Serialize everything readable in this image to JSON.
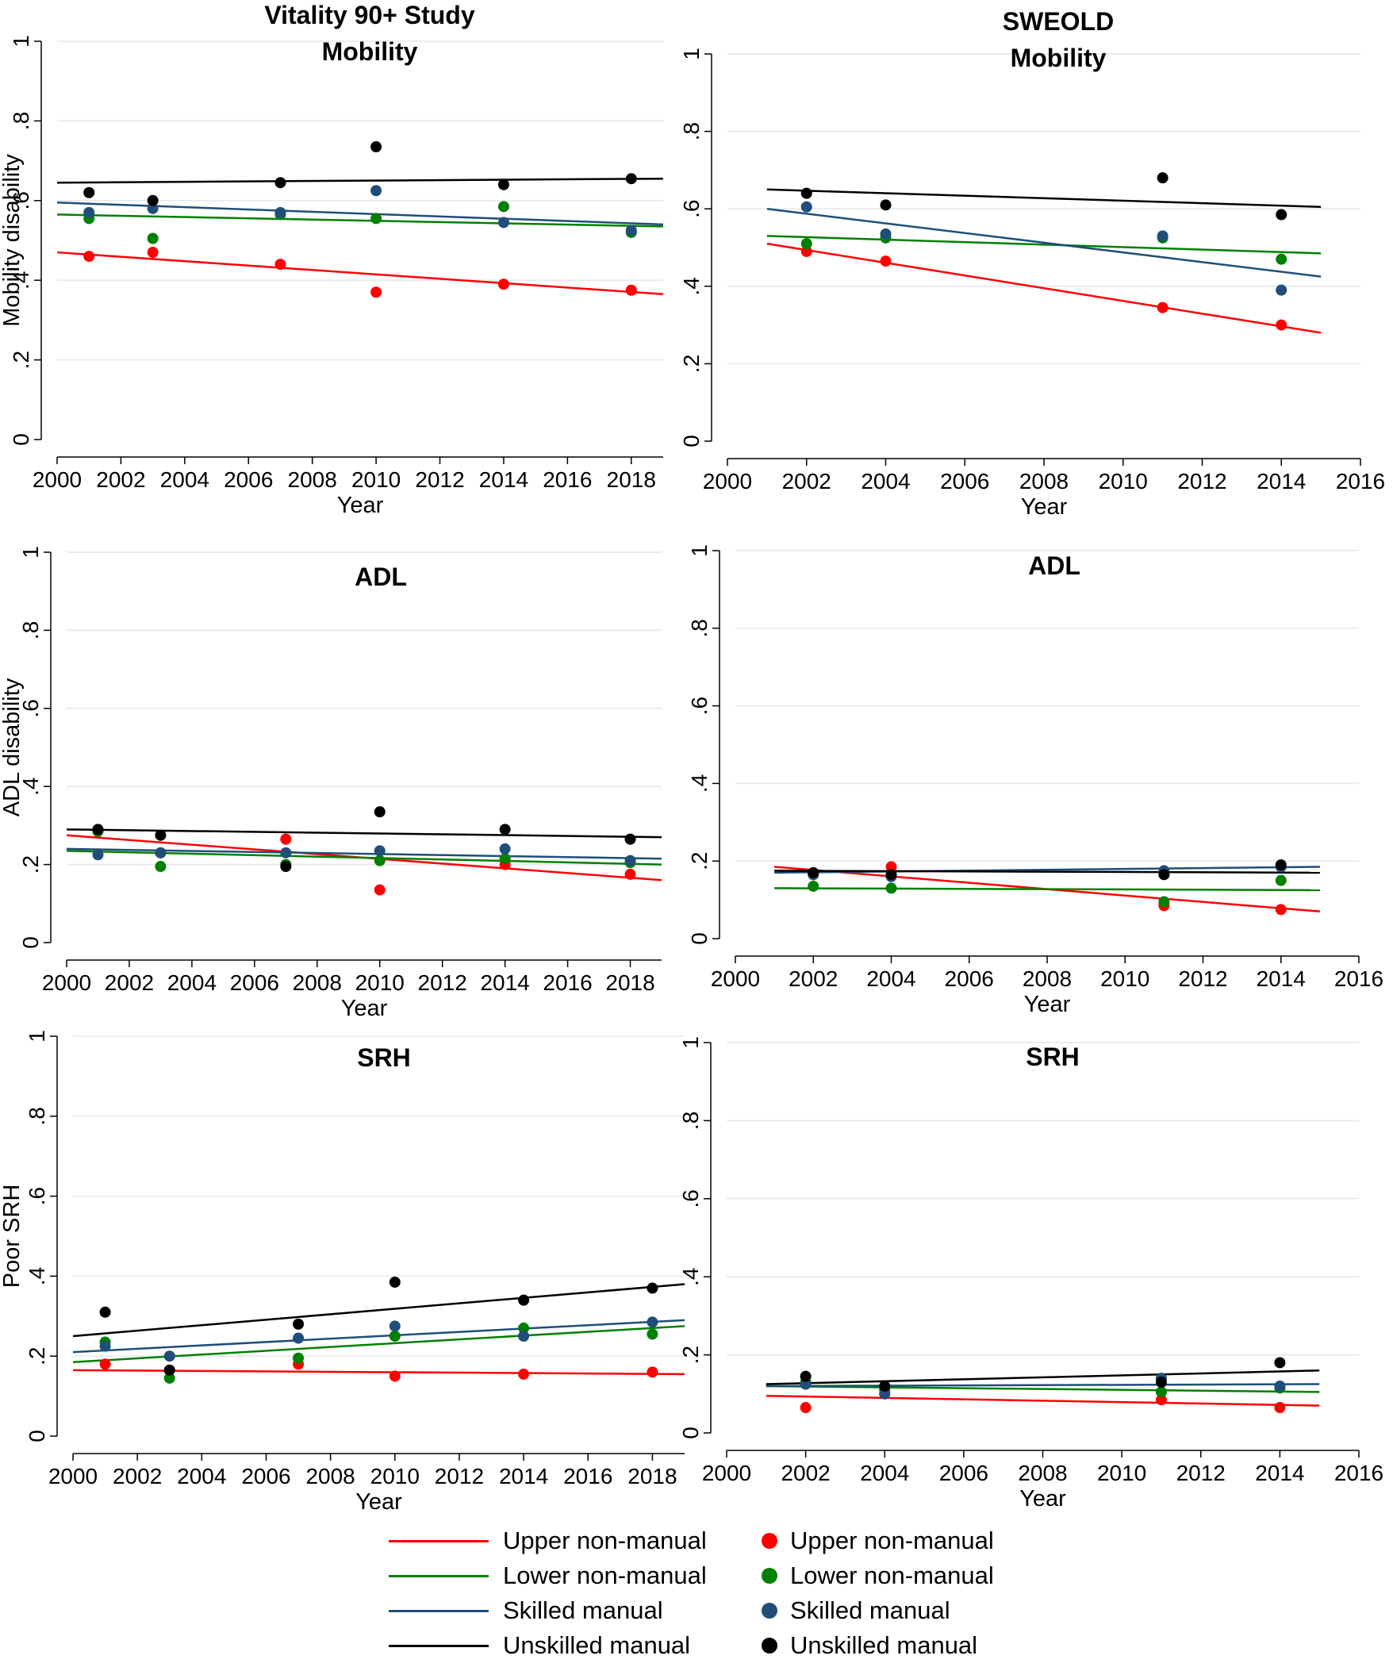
{
  "figure": {
    "panels_titles": [
      "Vitality 90+ Study / Mobility",
      "SWEOLD / Mobility",
      "ADL",
      "ADL",
      "SRH",
      "SRH"
    ]
  },
  "chart_data": [
    {
      "type": "scatter",
      "title_lines": [
        "Vitality 90+ Study",
        "Mobility"
      ],
      "xlabel": "Year",
      "ylabel": "Mobility disability",
      "xlim": [
        2000,
        2019
      ],
      "xticks": [
        2000,
        2002,
        2004,
        2006,
        2008,
        2010,
        2012,
        2014,
        2016,
        2018
      ],
      "ylim": [
        0,
        1
      ],
      "yticks": [
        0,
        0.2,
        0.4,
        0.6,
        0.8,
        1
      ],
      "ytick_labels": [
        "0",
        ".2",
        ".4",
        ".6",
        ".8",
        "1"
      ],
      "x": [
        2001,
        2003,
        2007,
        2010,
        2014,
        2018
      ],
      "series": [
        {
          "name": "Upper non-manual",
          "points": [
            [
              2001,
              0.46
            ],
            [
              2003,
              0.47
            ],
            [
              2007,
              0.44
            ],
            [
              2010,
              0.37
            ],
            [
              2014,
              0.39
            ],
            [
              2018,
              0.375
            ]
          ],
          "fit": [
            [
              2000,
              0.47
            ],
            [
              2019,
              0.365
            ]
          ]
        },
        {
          "name": "Lower non-manual",
          "points": [
            [
              2001,
              0.555
            ],
            [
              2003,
              0.505
            ],
            [
              2007,
              0.565
            ],
            [
              2010,
              0.555
            ],
            [
              2014,
              0.585
            ],
            [
              2018,
              0.52
            ]
          ],
          "fit": [
            [
              2000,
              0.565
            ],
            [
              2019,
              0.535
            ]
          ]
        },
        {
          "name": "Skilled manual",
          "points": [
            [
              2001,
              0.57
            ],
            [
              2003,
              0.58
            ],
            [
              2007,
              0.57
            ],
            [
              2010,
              0.625
            ],
            [
              2014,
              0.545
            ],
            [
              2018,
              0.525
            ]
          ],
          "fit": [
            [
              2000,
              0.595
            ],
            [
              2019,
              0.54
            ]
          ]
        },
        {
          "name": "Unskilled manual",
          "points": [
            [
              2001,
              0.62
            ],
            [
              2003,
              0.6
            ],
            [
              2007,
              0.645
            ],
            [
              2010,
              0.735
            ],
            [
              2014,
              0.64
            ],
            [
              2018,
              0.655
            ]
          ],
          "fit": [
            [
              2000,
              0.645
            ],
            [
              2019,
              0.655
            ]
          ]
        }
      ]
    },
    {
      "type": "scatter",
      "title_lines": [
        "SWEOLD",
        "Mobility"
      ],
      "xlabel": "Year",
      "ylabel": "",
      "xlim": [
        2000,
        2016
      ],
      "xticks": [
        2000,
        2002,
        2004,
        2006,
        2008,
        2010,
        2012,
        2014,
        2016
      ],
      "ylim": [
        0,
        1
      ],
      "yticks": [
        0,
        0.2,
        0.4,
        0.6,
        0.8,
        1
      ],
      "ytick_labels": [
        "0",
        ".2",
        ".4",
        ".6",
        ".8",
        "1"
      ],
      "x": [
        2002,
        2004,
        2011,
        2014
      ],
      "series": [
        {
          "name": "Upper non-manual",
          "points": [
            [
              2002,
              0.49
            ],
            [
              2004,
              0.465
            ],
            [
              2011,
              0.345
            ],
            [
              2014,
              0.3
            ]
          ],
          "fit": [
            [
              2001,
              0.51
            ],
            [
              2015,
              0.28
            ]
          ]
        },
        {
          "name": "Lower non-manual",
          "points": [
            [
              2002,
              0.51
            ],
            [
              2004,
              0.525
            ],
            [
              2011,
              0.525
            ],
            [
              2014,
              0.47
            ]
          ],
          "fit": [
            [
              2001,
              0.53
            ],
            [
              2015,
              0.485
            ]
          ]
        },
        {
          "name": "Skilled manual",
          "points": [
            [
              2002,
              0.605
            ],
            [
              2004,
              0.535
            ],
            [
              2011,
              0.53
            ],
            [
              2014,
              0.39
            ]
          ],
          "fit": [
            [
              2001,
              0.6
            ],
            [
              2015,
              0.425
            ]
          ]
        },
        {
          "name": "Unskilled manual",
          "points": [
            [
              2002,
              0.64
            ],
            [
              2004,
              0.61
            ],
            [
              2011,
              0.68
            ],
            [
              2014,
              0.585
            ]
          ],
          "fit": [
            [
              2001,
              0.65
            ],
            [
              2015,
              0.605
            ]
          ]
        }
      ]
    },
    {
      "type": "scatter",
      "title_lines": [
        "ADL"
      ],
      "xlabel": "Year",
      "ylabel": "ADL disability",
      "xlim": [
        2000,
        2019
      ],
      "xticks": [
        2000,
        2002,
        2004,
        2006,
        2008,
        2010,
        2012,
        2014,
        2016,
        2018
      ],
      "ylim": [
        0,
        1
      ],
      "yticks": [
        0,
        0.2,
        0.4,
        0.6,
        0.8,
        1
      ],
      "ytick_labels": [
        "0",
        ".2",
        ".4",
        ".6",
        ".8",
        "1"
      ],
      "x": [
        2001,
        2003,
        2007,
        2010,
        2014,
        2018
      ],
      "series": [
        {
          "name": "Upper non-manual",
          "points": [
            [
              2001,
              0.285
            ],
            [
              2003,
              0.23
            ],
            [
              2007,
              0.265
            ],
            [
              2010,
              0.135
            ],
            [
              2014,
              0.2
            ],
            [
              2018,
              0.175
            ]
          ],
          "fit": [
            [
              2000,
              0.275
            ],
            [
              2019,
              0.16
            ]
          ]
        },
        {
          "name": "Lower non-manual",
          "points": [
            [
              2001,
              0.285
            ],
            [
              2003,
              0.195
            ],
            [
              2007,
              0.2
            ],
            [
              2010,
              0.21
            ],
            [
              2014,
              0.215
            ],
            [
              2018,
              0.205
            ]
          ],
          "fit": [
            [
              2000,
              0.235
            ],
            [
              2019,
              0.2
            ]
          ]
        },
        {
          "name": "Skilled manual",
          "points": [
            [
              2001,
              0.225
            ],
            [
              2003,
              0.23
            ],
            [
              2007,
              0.23
            ],
            [
              2010,
              0.235
            ],
            [
              2014,
              0.24
            ],
            [
              2018,
              0.21
            ]
          ],
          "fit": [
            [
              2000,
              0.24
            ],
            [
              2019,
              0.215
            ]
          ]
        },
        {
          "name": "Unskilled manual",
          "points": [
            [
              2001,
              0.29
            ],
            [
              2003,
              0.275
            ],
            [
              2007,
              0.195
            ],
            [
              2010,
              0.335
            ],
            [
              2014,
              0.29
            ],
            [
              2018,
              0.265
            ]
          ],
          "fit": [
            [
              2000,
              0.29
            ],
            [
              2019,
              0.27
            ]
          ]
        }
      ]
    },
    {
      "type": "scatter",
      "title_lines": [
        "ADL"
      ],
      "xlabel": "Year",
      "ylabel": "",
      "xlim": [
        2000,
        2016
      ],
      "xticks": [
        2000,
        2002,
        2004,
        2006,
        2008,
        2010,
        2012,
        2014,
        2016
      ],
      "ylim": [
        0,
        1
      ],
      "yticks": [
        0,
        0.2,
        0.4,
        0.6,
        0.8,
        1
      ],
      "ytick_labels": [
        "0",
        ".2",
        ".4",
        ".6",
        ".8",
        "1"
      ],
      "x": [
        2002,
        2004,
        2011,
        2014
      ],
      "series": [
        {
          "name": "Upper non-manual",
          "points": [
            [
              2002,
              0.165
            ],
            [
              2004,
              0.185
            ],
            [
              2011,
              0.085
            ],
            [
              2014,
              0.075
            ]
          ],
          "fit": [
            [
              2001,
              0.185
            ],
            [
              2015,
              0.07
            ]
          ]
        },
        {
          "name": "Lower non-manual",
          "points": [
            [
              2002,
              0.135
            ],
            [
              2004,
              0.13
            ],
            [
              2011,
              0.095
            ],
            [
              2014,
              0.15
            ]
          ],
          "fit": [
            [
              2001,
              0.13
            ],
            [
              2015,
              0.125
            ]
          ]
        },
        {
          "name": "Skilled manual",
          "points": [
            [
              2002,
              0.165
            ],
            [
              2004,
              0.16
            ],
            [
              2011,
              0.175
            ],
            [
              2014,
              0.185
            ]
          ],
          "fit": [
            [
              2001,
              0.17
            ],
            [
              2015,
              0.185
            ]
          ]
        },
        {
          "name": "Unskilled manual",
          "points": [
            [
              2002,
              0.17
            ],
            [
              2004,
              0.165
            ],
            [
              2011,
              0.165
            ],
            [
              2014,
              0.19
            ]
          ],
          "fit": [
            [
              2001,
              0.175
            ],
            [
              2015,
              0.17
            ]
          ]
        }
      ]
    },
    {
      "type": "scatter",
      "title_lines": [
        "SRH"
      ],
      "xlabel": "Year",
      "ylabel": "Poor SRH",
      "xlim": [
        2000,
        2019
      ],
      "xticks": [
        2000,
        2002,
        2004,
        2006,
        2008,
        2010,
        2012,
        2014,
        2016,
        2018
      ],
      "ylim": [
        0,
        1
      ],
      "yticks": [
        0,
        0.2,
        0.4,
        0.6,
        0.8,
        1
      ],
      "ytick_labels": [
        "0",
        ".2",
        ".4",
        ".6",
        ".8",
        "1"
      ],
      "x": [
        2001,
        2003,
        2007,
        2010,
        2014,
        2018
      ],
      "series": [
        {
          "name": "Upper non-manual",
          "points": [
            [
              2001,
              0.18
            ],
            [
              2003,
              0.165
            ],
            [
              2007,
              0.18
            ],
            [
              2010,
              0.15
            ],
            [
              2014,
              0.155
            ],
            [
              2018,
              0.16
            ]
          ],
          "fit": [
            [
              2000,
              0.165
            ],
            [
              2019,
              0.155
            ]
          ]
        },
        {
          "name": "Lower non-manual",
          "points": [
            [
              2001,
              0.235
            ],
            [
              2003,
              0.145
            ],
            [
              2007,
              0.195
            ],
            [
              2010,
              0.25
            ],
            [
              2014,
              0.27
            ],
            [
              2018,
              0.255
            ]
          ],
          "fit": [
            [
              2000,
              0.185
            ],
            [
              2019,
              0.275
            ]
          ]
        },
        {
          "name": "Skilled manual",
          "points": [
            [
              2001,
              0.225
            ],
            [
              2003,
              0.2
            ],
            [
              2007,
              0.245
            ],
            [
              2010,
              0.275
            ],
            [
              2014,
              0.25
            ],
            [
              2018,
              0.285
            ]
          ],
          "fit": [
            [
              2000,
              0.21
            ],
            [
              2019,
              0.29
            ]
          ]
        },
        {
          "name": "Unskilled manual",
          "points": [
            [
              2001,
              0.31
            ],
            [
              2003,
              0.165
            ],
            [
              2007,
              0.28
            ],
            [
              2010,
              0.385
            ],
            [
              2014,
              0.34
            ],
            [
              2018,
              0.37
            ]
          ],
          "fit": [
            [
              2000,
              0.25
            ],
            [
              2019,
              0.38
            ]
          ]
        }
      ]
    },
    {
      "type": "scatter",
      "title_lines": [
        "SRH"
      ],
      "xlabel": "Year",
      "ylabel": "",
      "xlim": [
        2000,
        2016
      ],
      "xticks": [
        2000,
        2002,
        2004,
        2006,
        2008,
        2010,
        2012,
        2014,
        2016
      ],
      "ylim": [
        0,
        1
      ],
      "yticks": [
        0,
        0.2,
        0.4,
        0.6,
        0.8,
        1
      ],
      "ytick_labels": [
        "0",
        ".2",
        ".4",
        ".6",
        ".8",
        "1"
      ],
      "x": [
        2002,
        2004,
        2011,
        2014
      ],
      "series": [
        {
          "name": "Upper non-manual",
          "points": [
            [
              2002,
              0.065
            ],
            [
              2004,
              0.1
            ],
            [
              2011,
              0.085
            ],
            [
              2014,
              0.065
            ]
          ],
          "fit": [
            [
              2001,
              0.095
            ],
            [
              2015,
              0.07
            ]
          ]
        },
        {
          "name": "Lower non-manual",
          "points": [
            [
              2002,
              0.13
            ],
            [
              2004,
              0.11
            ],
            [
              2011,
              0.105
            ],
            [
              2014,
              0.115
            ]
          ],
          "fit": [
            [
              2001,
              0.12
            ],
            [
              2015,
              0.105
            ]
          ]
        },
        {
          "name": "Skilled manual",
          "points": [
            [
              2002,
              0.125
            ],
            [
              2004,
              0.1
            ],
            [
              2011,
              0.14
            ],
            [
              2014,
              0.12
            ]
          ],
          "fit": [
            [
              2001,
              0.12
            ],
            [
              2015,
              0.125
            ]
          ]
        },
        {
          "name": "Unskilled manual",
          "points": [
            [
              2002,
              0.145
            ],
            [
              2004,
              0.12
            ],
            [
              2011,
              0.13
            ],
            [
              2014,
              0.18
            ]
          ],
          "fit": [
            [
              2001,
              0.125
            ],
            [
              2015,
              0.16
            ]
          ]
        }
      ]
    }
  ],
  "legend": {
    "lines": [
      {
        "label": "Upper non-manual",
        "color": "#ff0000"
      },
      {
        "label": "Lower non-manual",
        "color": "#008000"
      },
      {
        "label": "Skilled manual",
        "color": "#1f4e79"
      },
      {
        "label": "Unskilled manual",
        "color": "#000000"
      }
    ],
    "dots": [
      {
        "label": "Upper non-manual",
        "color": "#ff0000"
      },
      {
        "label": "Lower non-manual",
        "color": "#008000"
      },
      {
        "label": "Skilled manual",
        "color": "#1f4e79"
      },
      {
        "label": "Unskilled manual",
        "color": "#000000"
      }
    ]
  },
  "colors": {
    "Upper non-manual": "#ff0000",
    "Lower non-manual": "#008000",
    "Skilled manual": "#1f4e79",
    "Unskilled manual": "#000000",
    "grid": "#e8ecef"
  }
}
